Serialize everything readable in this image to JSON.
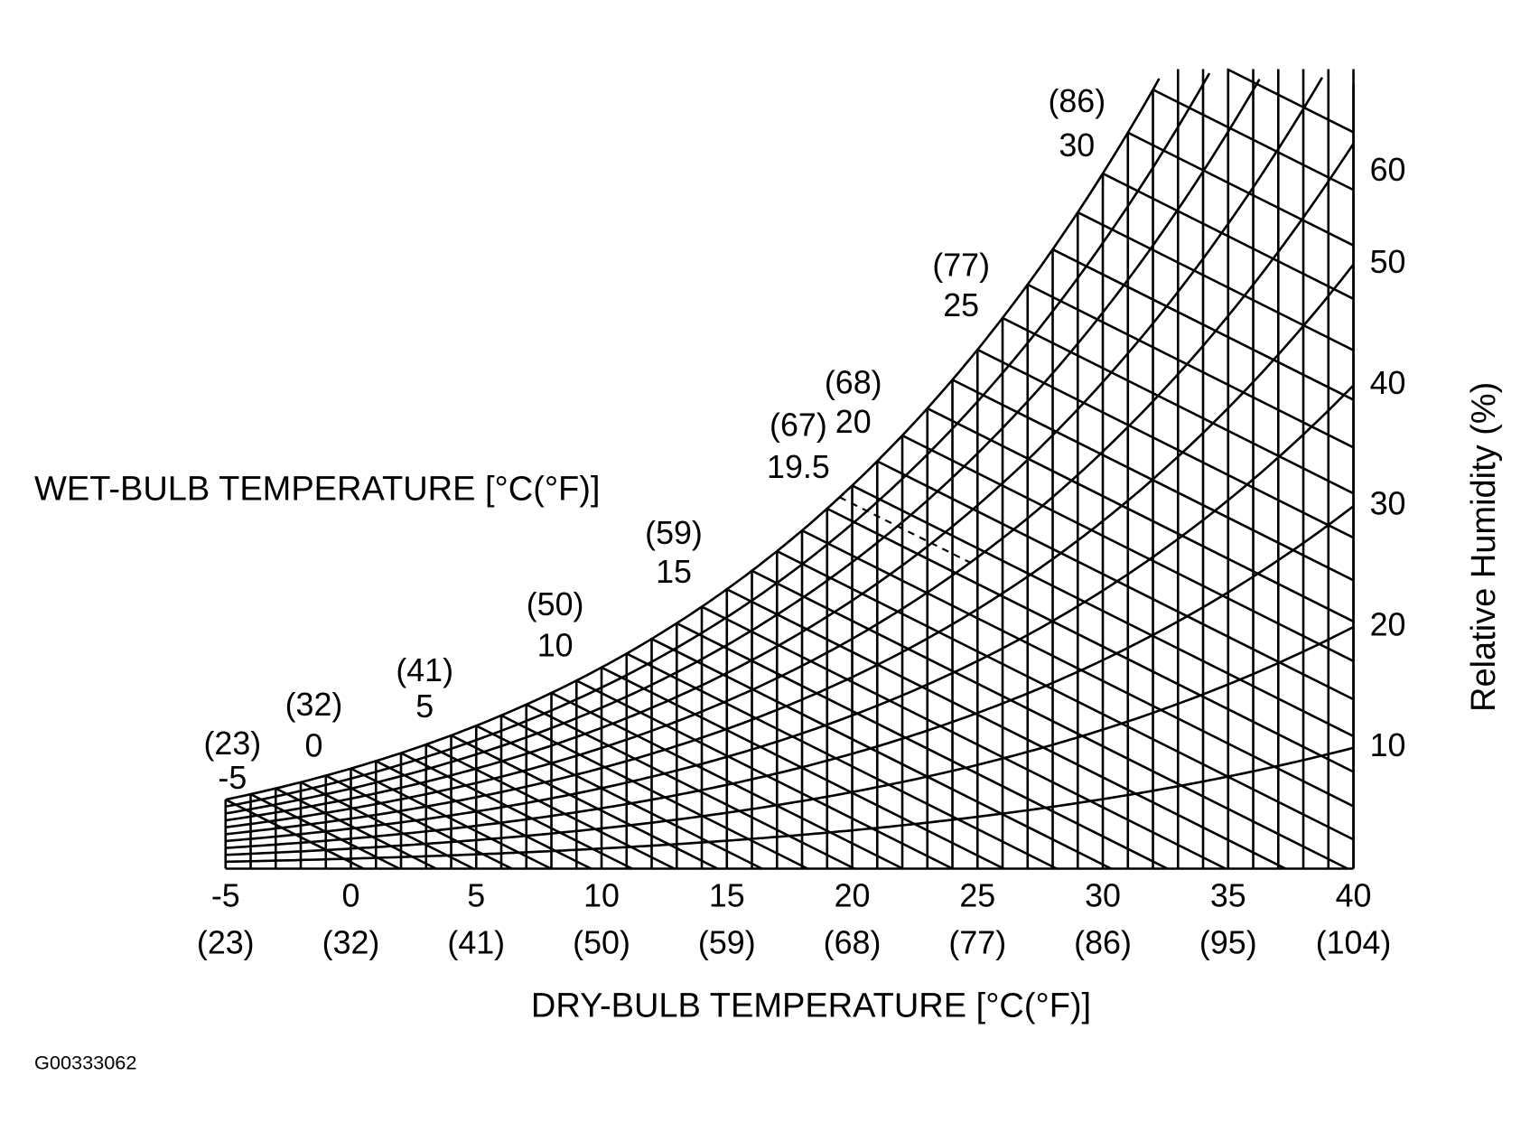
{
  "wet_bulb_axis": {
    "title": "WET-BULB TEMPERATURE [°C(°F)]",
    "labels": [
      {
        "c": "-5",
        "f": "(23)"
      },
      {
        "c": "0",
        "f": "(32)"
      },
      {
        "c": "5",
        "f": "(41)"
      },
      {
        "c": "10",
        "f": "(50)"
      },
      {
        "c": "15",
        "f": "(59)"
      },
      {
        "c": "19.5",
        "f": "(67)"
      },
      {
        "c": "20",
        "f": "(68)"
      },
      {
        "c": "25",
        "f": "(77)"
      },
      {
        "c": "30",
        "f": "(86)"
      }
    ]
  },
  "dry_bulb_axis": {
    "title": "DRY-BULB TEMPERATURE [°C(°F)]",
    "labels": [
      {
        "c": "-5",
        "f": "(23)"
      },
      {
        "c": "0",
        "f": "(32)"
      },
      {
        "c": "5",
        "f": "(41)"
      },
      {
        "c": "10",
        "f": "(50)"
      },
      {
        "c": "15",
        "f": "(59)"
      },
      {
        "c": "20",
        "f": "(68)"
      },
      {
        "c": "25",
        "f": "(77)"
      },
      {
        "c": "30",
        "f": "(86)"
      },
      {
        "c": "35",
        "f": "(95)"
      },
      {
        "c": "40",
        "f": "(104)"
      }
    ]
  },
  "humidity_axis": {
    "title": "Relative Humidity (%)",
    "labels": [
      "10",
      "20",
      "30",
      "40",
      "50",
      "60"
    ]
  },
  "code": "G00333062"
}
